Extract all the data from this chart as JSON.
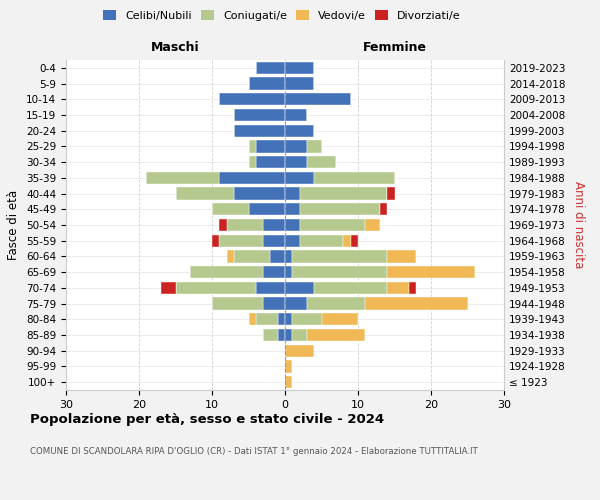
{
  "age_groups": [
    "100+",
    "95-99",
    "90-94",
    "85-89",
    "80-84",
    "75-79",
    "70-74",
    "65-69",
    "60-64",
    "55-59",
    "50-54",
    "45-49",
    "40-44",
    "35-39",
    "30-34",
    "25-29",
    "20-24",
    "15-19",
    "10-14",
    "5-9",
    "0-4"
  ],
  "birth_years": [
    "≤ 1923",
    "1924-1928",
    "1929-1933",
    "1934-1938",
    "1939-1943",
    "1944-1948",
    "1949-1953",
    "1954-1958",
    "1959-1963",
    "1964-1968",
    "1969-1973",
    "1974-1978",
    "1979-1983",
    "1984-1988",
    "1989-1993",
    "1994-1998",
    "1999-2003",
    "2004-2008",
    "2009-2013",
    "2014-2018",
    "2019-2023"
  ],
  "colors": {
    "celibi": "#4472b8",
    "coniugati": "#b5c98e",
    "vedovi": "#f0b955",
    "divorziati": "#cc2222"
  },
  "maschi": {
    "celibi": [
      0,
      0,
      0,
      1,
      1,
      3,
      4,
      3,
      2,
      3,
      3,
      5,
      7,
      9,
      4,
      4,
      7,
      7,
      9,
      5,
      4
    ],
    "coniugati": [
      0,
      0,
      0,
      2,
      3,
      7,
      11,
      10,
      5,
      6,
      5,
      5,
      8,
      10,
      1,
      1,
      0,
      0,
      0,
      0,
      0
    ],
    "vedovi": [
      0,
      0,
      0,
      0,
      1,
      0,
      0,
      0,
      1,
      0,
      0,
      0,
      0,
      0,
      0,
      0,
      0,
      0,
      0,
      0,
      0
    ],
    "divorziati": [
      0,
      0,
      0,
      0,
      0,
      0,
      2,
      0,
      0,
      1,
      1,
      0,
      0,
      0,
      0,
      0,
      0,
      0,
      0,
      0,
      0
    ]
  },
  "femmine": {
    "celibi": [
      0,
      0,
      0,
      1,
      1,
      3,
      4,
      1,
      1,
      2,
      2,
      2,
      2,
      4,
      3,
      3,
      4,
      3,
      9,
      4,
      4
    ],
    "coniugati": [
      0,
      0,
      0,
      2,
      4,
      8,
      10,
      13,
      13,
      6,
      9,
      11,
      12,
      11,
      4,
      2,
      0,
      0,
      0,
      0,
      0
    ],
    "vedovi": [
      1,
      1,
      4,
      8,
      5,
      14,
      3,
      12,
      4,
      1,
      2,
      0,
      0,
      0,
      0,
      0,
      0,
      0,
      0,
      0,
      0
    ],
    "divorziati": [
      0,
      0,
      0,
      0,
      0,
      0,
      1,
      0,
      0,
      1,
      0,
      1,
      1,
      0,
      0,
      0,
      0,
      0,
      0,
      0,
      0
    ]
  },
  "title": "Popolazione per età, sesso e stato civile - 2024",
  "subtitle": "COMUNE DI SCANDOLARA RIPA D'OGLIO (CR) - Dati ISTAT 1° gennaio 2024 - Elaborazione TUTTITALIA.IT",
  "header_left": "Maschi",
  "header_right": "Femmine",
  "ylabel_left": "Fasce di età",
  "ylabel_right": "Anni di nascita",
  "xlim": 30,
  "xticks": [
    -30,
    -20,
    -10,
    0,
    10,
    20,
    30
  ],
  "xtick_labels": [
    "30",
    "20",
    "10",
    "0",
    "10",
    "20",
    "30"
  ],
  "legend_labels": [
    "Celibi/Nubili",
    "Coniugati/e",
    "Vedovi/e",
    "Divorziati/e"
  ],
  "bg_color": "#f2f2f2",
  "plot_bg": "#ffffff",
  "bar_height": 0.78,
  "figsize": [
    6.0,
    5.0
  ],
  "dpi": 100
}
